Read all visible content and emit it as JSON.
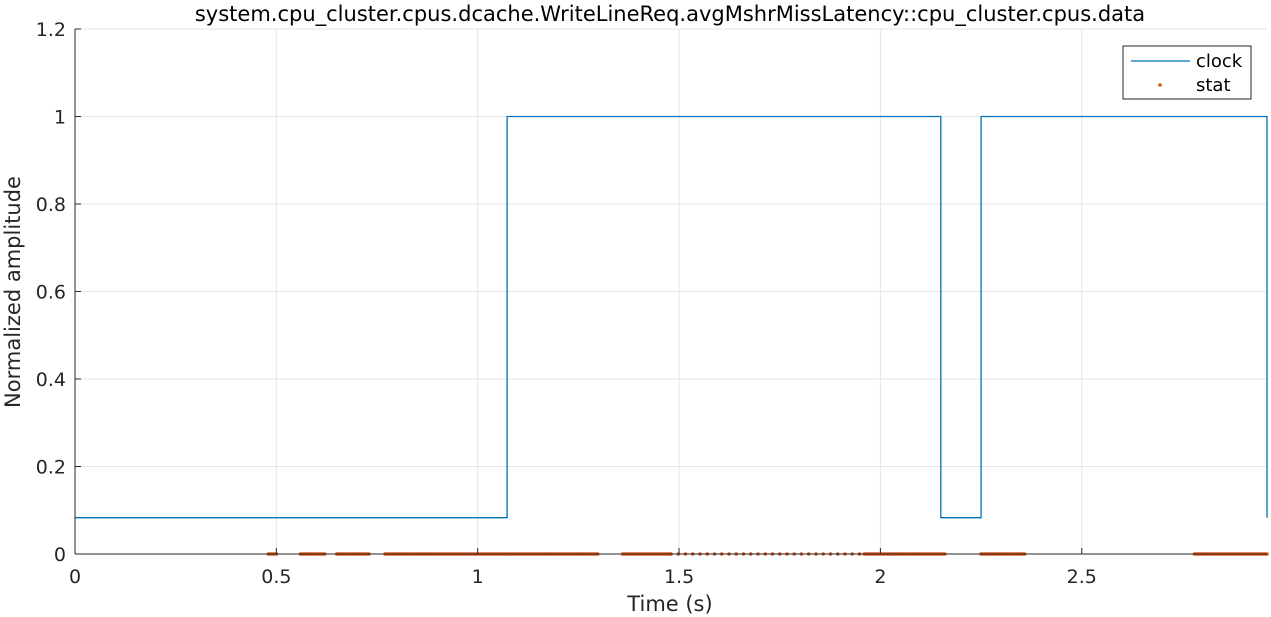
{
  "chart_data": {
    "type": "line",
    "title": "system.cpu_cluster.cpus.dcache.WriteLineReq.avgMshrMissLatency::cpu_cluster.cpus.data",
    "xlabel": "Time (s)",
    "ylabel": "Normalized amplitude",
    "xlim": [
      0,
      2.96
    ],
    "ylim": [
      0,
      1.2
    ],
    "xticks": [
      0,
      0.5,
      1,
      1.5,
      2,
      2.5
    ],
    "xtick_labels": [
      "0",
      "0.5",
      "1",
      "1.5",
      "2",
      "2.5"
    ],
    "yticks": [
      0,
      0.2,
      0.4,
      0.6,
      0.8,
      1,
      1.2
    ],
    "ytick_labels": [
      "0",
      "0.2",
      "0.4",
      "0.6",
      "0.8",
      "1",
      "1.2"
    ],
    "grid": true,
    "legend_position": "top-right",
    "colors": {
      "clock": "#0072BD",
      "stat": "#D95319",
      "grid": "#e5e5e5",
      "axis": "#262626"
    },
    "series": [
      {
        "name": "clock",
        "style": "step-line",
        "points": [
          [
            0,
            0.083
          ],
          [
            1.073,
            0.083
          ],
          [
            1.073,
            1
          ],
          [
            2.15,
            1
          ],
          [
            2.15,
            0.083
          ],
          [
            2.25,
            0.083
          ],
          [
            2.25,
            1
          ],
          [
            2.96,
            1
          ],
          [
            2.96,
            0.083
          ]
        ]
      },
      {
        "name": "stat",
        "style": "dots",
        "y": 0,
        "x_ranges": [
          [
            0.48,
            0.5,
            0.004
          ],
          [
            0.56,
            0.62,
            0.004
          ],
          [
            0.65,
            0.73,
            0.004
          ],
          [
            0.77,
            1.3,
            0.004
          ],
          [
            1.36,
            1.48,
            0.004
          ],
          [
            1.48,
            1.96,
            0.018
          ],
          [
            1.96,
            2.16,
            0.004
          ],
          [
            2.25,
            2.36,
            0.004
          ],
          [
            2.78,
            2.96,
            0.004
          ]
        ]
      }
    ]
  }
}
